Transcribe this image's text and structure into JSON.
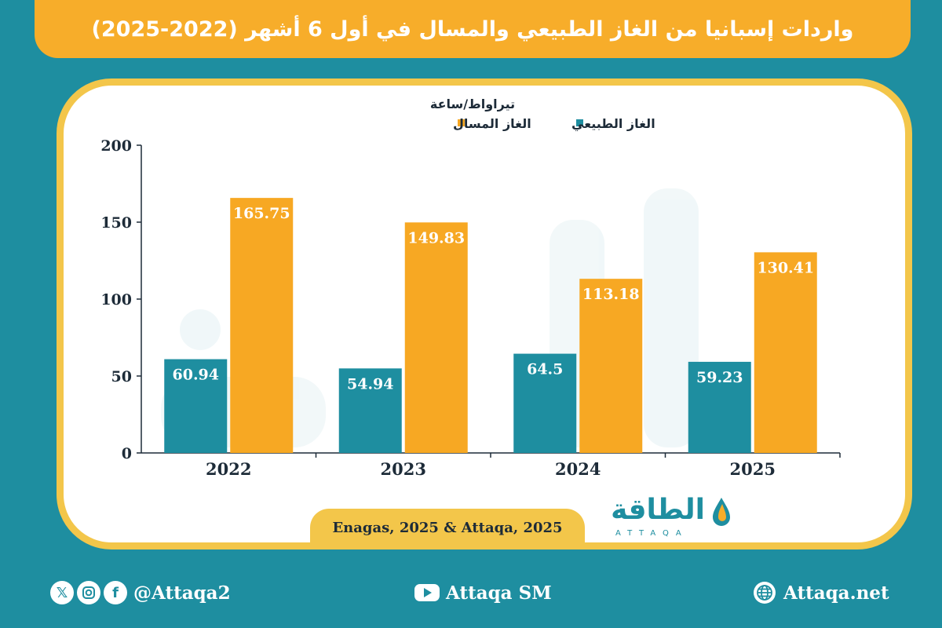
{
  "title": "واردات إسبانيا من الغاز الطبيعي والمسال في أول 6 أشهر (2022-2025)",
  "chart_data": {
    "type": "bar",
    "unit_label": "تيراواط/ساعة",
    "categories": [
      "2022",
      "2023",
      "2024",
      "2025"
    ],
    "series": [
      {
        "name": "الغاز الطبيعي",
        "color": "#1e8ea0",
        "values": [
          60.94,
          54.94,
          64.5,
          59.23
        ],
        "labels": [
          "60.94",
          "54.94",
          "64.5",
          "59.23"
        ]
      },
      {
        "name": "الغاز المسال",
        "color": "#f7a823",
        "values": [
          165.75,
          149.83,
          113.18,
          130.41
        ],
        "labels": [
          "165.75",
          "149.83",
          "113.18",
          "130.41"
        ]
      }
    ],
    "ylim": [
      0,
      200
    ],
    "yticks": [
      0,
      50,
      100,
      150,
      200
    ],
    "legend_position": "top-center",
    "grid": false
  },
  "source": "Enagas, 2025 & Attaqa, 2025",
  "brand": {
    "arabic": "الطاقة",
    "latin": "ATTAQA"
  },
  "footer": {
    "social_handle": "@Attaqa2",
    "youtube": "Attaqa SM",
    "website": "Attaqa.net"
  },
  "colors": {
    "background": "#1e8ea0",
    "accent": "#f7ad2a",
    "frame": "#f3c64a"
  }
}
